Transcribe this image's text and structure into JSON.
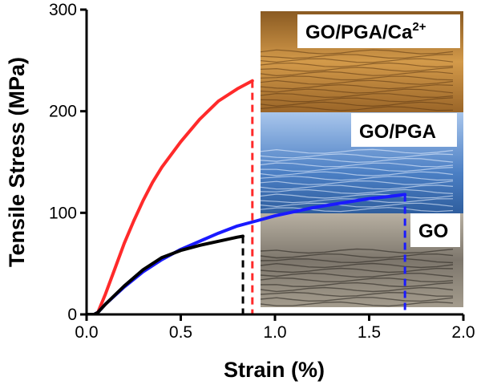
{
  "chart_data": {
    "type": "line",
    "xlabel": "Strain (%)",
    "ylabel": "Tensile Stress (MPa)",
    "xlim": [
      0.0,
      2.0
    ],
    "ylim": [
      0,
      300
    ],
    "x_ticks": [
      "0.0",
      "0.5",
      "1.0",
      "1.5",
      "2.0"
    ],
    "y_ticks": [
      "0",
      "100",
      "200",
      "300"
    ],
    "grid": false,
    "series": [
      {
        "name": "GO/PGA/Ca2+",
        "color": "#ff2a2a",
        "x": [
          0.0,
          0.04,
          0.06,
          0.1,
          0.15,
          0.2,
          0.25,
          0.3,
          0.35,
          0.4,
          0.5,
          0.6,
          0.7,
          0.8,
          0.88
        ],
        "y": [
          0,
          0,
          2,
          20,
          45,
          70,
          92,
          112,
          130,
          145,
          170,
          192,
          210,
          222,
          230
        ],
        "fracture_strain": 0.88
      },
      {
        "name": "GO/PGA",
        "color": "#1a1aff",
        "x": [
          0.0,
          0.04,
          0.06,
          0.1,
          0.2,
          0.3,
          0.4,
          0.5,
          0.6,
          0.7,
          0.8,
          0.9,
          1.0,
          1.1,
          1.2,
          1.3,
          1.4,
          1.5,
          1.6,
          1.69
        ],
        "y": [
          0,
          0,
          2,
          10,
          27,
          42,
          54,
          64,
          72,
          80,
          87,
          92,
          97,
          101,
          105,
          108,
          111,
          114,
          116,
          118
        ],
        "fracture_strain": 1.69
      },
      {
        "name": "GO",
        "color": "#000000",
        "x": [
          0.0,
          0.04,
          0.06,
          0.1,
          0.2,
          0.3,
          0.4,
          0.5,
          0.6,
          0.7,
          0.8,
          0.83
        ],
        "y": [
          0,
          0,
          2,
          10,
          28,
          44,
          56,
          63,
          68,
          72,
          76,
          77
        ],
        "fracture_strain": 0.83
      }
    ],
    "insets": [
      {
        "label_main": "GO/PGA/Ca",
        "label_sup": "2+",
        "tone": "#c58a3c"
      },
      {
        "label_main": "GO/PGA",
        "tone": "#5f8fcf"
      },
      {
        "label_main": "GO",
        "tone": "#9c9488"
      }
    ]
  }
}
